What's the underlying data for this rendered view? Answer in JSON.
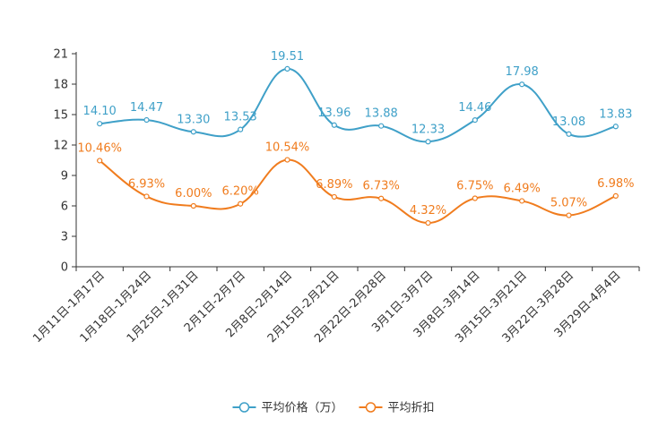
{
  "chart_data": {
    "type": "line",
    "title": "",
    "xlabel": "",
    "ylabel": "",
    "ylim": [
      0,
      21
    ],
    "yticks": [
      0,
      3,
      6,
      9,
      12,
      15,
      18,
      21
    ],
    "categories": [
      "1月11日-1月17日",
      "1月18日-1月24日",
      "1月25日-1月31日",
      "2月1日-2月7日",
      "2月8日-2月14日",
      "2月15日-2月21日",
      "2月22日-2月28日",
      "3月1日-3月7日",
      "3月8日-3月14日",
      "3月15日-3月21日",
      "3月22日-3月28日",
      "3月29日-4月4日"
    ],
    "series": [
      {
        "name": "平均价格（万）",
        "color": "#3fa0c8",
        "values": [
          14.1,
          14.47,
          13.3,
          13.53,
          19.51,
          13.96,
          13.88,
          12.33,
          14.46,
          17.98,
          13.08,
          13.83
        ],
        "labels": [
          "14.10",
          "14.47",
          "13.30",
          "13.53",
          "19.51",
          "13.96",
          "13.88",
          "12.33",
          "14.46",
          "17.98",
          "13.08",
          "13.83"
        ]
      },
      {
        "name": "平均折扣",
        "color": "#f07c1e",
        "values": [
          10.46,
          6.93,
          6.0,
          6.2,
          10.54,
          6.89,
          6.73,
          4.32,
          6.75,
          6.49,
          5.07,
          6.98
        ],
        "labels": [
          "10.46%",
          "6.93%",
          "6.00%",
          "6.20%",
          "10.54%",
          "6.89%",
          "6.73%",
          "4.32%",
          "6.75%",
          "6.49%",
          "5.07%",
          "6.98%"
        ]
      }
    ],
    "legend_position": "bottom-center"
  }
}
